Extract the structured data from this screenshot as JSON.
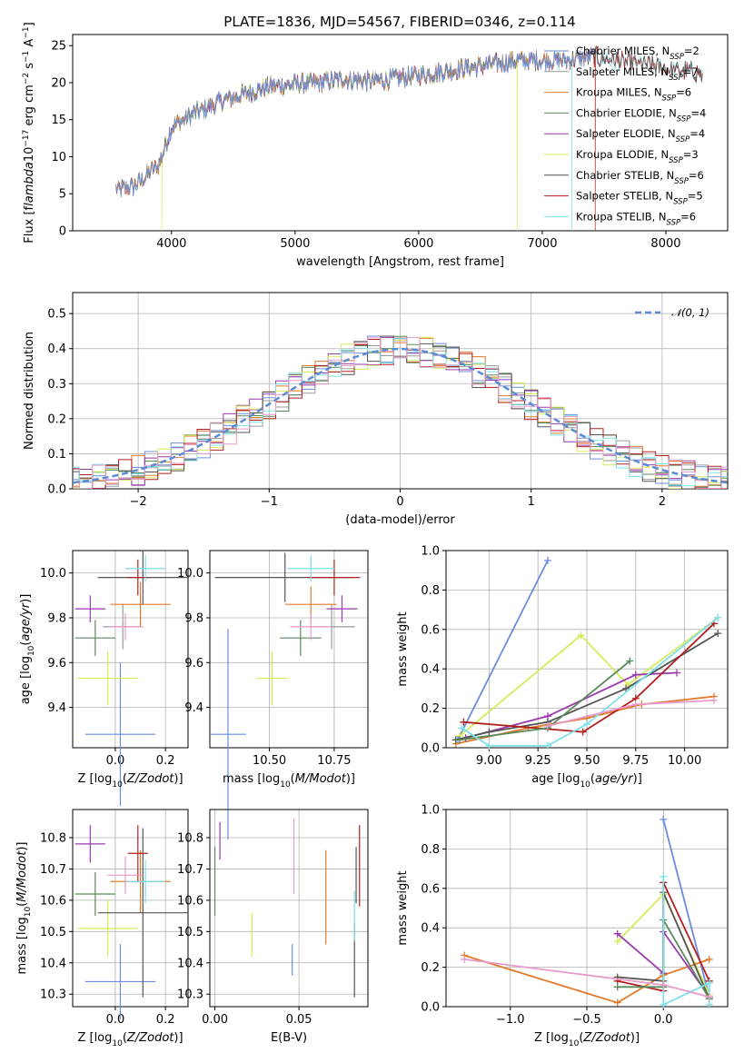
{
  "page": {
    "title": "PLATE=1836, MJD=54567, FIBERID=0346, z=0.114"
  },
  "colors": {
    "Chabrier MILES": "#6b8cde",
    "Salpeter MILES": "#9a9a9a",
    "Kroupa MILES": "#e07b2a",
    "Chabrier ELODIE": "#5a8a5a",
    "Salpeter ELODIE": "#9b3aae",
    "Kroupa ELODIE": "#d6ec5a",
    "Chabrier STELIB": "#555555",
    "Salpeter STELIB": "#b22020",
    "Kroupa STELIB": "#7ee0e8",
    "pink": "#e89ac8"
  },
  "chart_data": [
    {
      "id": "spectrum",
      "type": "line",
      "title": "PLATE=1836, MJD=54567, FIBERID=0346, z=0.114",
      "xlabel": "wavelength [Angstrom, rest frame]",
      "ylabel": "Flux [f$_\\lambda$10$^{-17}$ erg cm$^{-2}$ s$^{-1}$ A$^{-1}$]",
      "xlim": [
        3200,
        8500
      ],
      "ylim": [
        0,
        26.5
      ],
      "xticks": [
        4000,
        5000,
        6000,
        7000,
        8000
      ],
      "yticks": [
        0,
        5,
        10,
        15,
        20,
        25
      ],
      "legend_position": "upper-right",
      "legend": [
        {
          "base": "Chabrier MILES, N",
          "sub": "SSP",
          "tail": "=2"
        },
        {
          "base": "Salpeter MILES, N",
          "sub": "SSP",
          "tail": "=7"
        },
        {
          "base": "Kroupa MILES, N",
          "sub": "SSP",
          "tail": "=6"
        },
        {
          "base": "Chabrier ELODIE, N",
          "sub": "SSP",
          "tail": "=4"
        },
        {
          "base": "Salpeter ELODIE, N",
          "sub": "SSP",
          "tail": "=4"
        },
        {
          "base": "Kroupa ELODIE, N",
          "sub": "SSP",
          "tail": "=3"
        },
        {
          "base": "Chabrier STELIB, N",
          "sub": "SSP",
          "tail": "=6"
        },
        {
          "base": "Salpeter STELIB, N",
          "sub": "SSP",
          "tail": "=5"
        },
        {
          "base": "Kroupa STELIB, N",
          "sub": "SSP",
          "tail": "=6"
        }
      ],
      "continuum": {
        "x": [
          3550,
          3700,
          3800,
          3900,
          4000,
          4200,
          4400,
          4600,
          4800,
          5000,
          5200,
          5400,
          5600,
          5800,
          6000,
          6200,
          6400,
          6600,
          6800,
          7000,
          7200,
          7400,
          7600,
          7800,
          8000,
          8200,
          8300
        ],
        "y": [
          5.5,
          6.0,
          7.5,
          9.0,
          14.0,
          16.0,
          17.5,
          18.5,
          19.5,
          19.8,
          20.0,
          20.5,
          20.2,
          20.5,
          21.0,
          21.5,
          22.0,
          22.5,
          23.0,
          23.0,
          23.0,
          23.5,
          23.0,
          22.5,
          22.0,
          21.5,
          21.0
        ]
      }
    },
    {
      "id": "residuals",
      "type": "histogram",
      "xlabel": "(data-model)/error",
      "ylabel": "Normed distribution",
      "xlim": [
        -2.5,
        2.5
      ],
      "ylim": [
        0,
        0.56
      ],
      "xticks": [
        -2,
        -1,
        0,
        1,
        2
      ],
      "yticks": [
        0.0,
        0.1,
        0.2,
        0.3,
        0.4,
        0.5
      ],
      "legend": [
        "$\\mathcal{N}(0,1)$"
      ],
      "legend_label": "𝒩(0, 1)",
      "legend_position": "upper-right",
      "grid": true
    },
    {
      "id": "age_vs_Z",
      "type": "scatter",
      "xlabel": "Z [log$_{10}$($Z/Z_\\odot$)]",
      "ylabel": "age  [log$_{10}$($age/yr$)]",
      "xlim": [
        -0.17,
        0.29
      ],
      "ylim": [
        9.22,
        10.1
      ],
      "xticks": [
        0.0,
        0.2
      ],
      "yticks": [
        9.4,
        9.6,
        9.8,
        10.0
      ],
      "points": [
        {
          "model": "Chabrier MILES",
          "x": 0.02,
          "xerr": 0.14,
          "y": 9.28,
          "yerr": 0.32
        },
        {
          "model": "Salpeter MILES",
          "x": 0.03,
          "xerr": 0.08,
          "y": 9.76,
          "yerr": 0.1
        },
        {
          "model": "Kroupa MILES",
          "x": 0.1,
          "xerr": 0.12,
          "y": 9.86,
          "yerr": 0.1
        },
        {
          "model": "Chabrier ELODIE",
          "x": -0.08,
          "xerr": 0.08,
          "y": 9.71,
          "yerr": 0.08
        },
        {
          "model": "Salpeter ELODIE",
          "x": -0.1,
          "xerr": 0.06,
          "y": 9.84,
          "yerr": 0.06
        },
        {
          "model": "Kroupa ELODIE",
          "x": -0.03,
          "xerr": 0.12,
          "y": 9.53,
          "yerr": 0.12
        },
        {
          "model": "Chabrier STELIB",
          "x": 0.11,
          "xerr": 0.18,
          "y": 9.98,
          "yerr": 0.12
        },
        {
          "model": "Salpeter STELIB",
          "x": 0.09,
          "xerr": 0.04,
          "y": 9.98,
          "yerr": 0.08
        },
        {
          "model": "Kroupa STELIB",
          "x": 0.12,
          "xerr": 0.08,
          "y": 10.02,
          "yerr": 0.06
        },
        {
          "model": "pink",
          "x": 0.04,
          "xerr": 0.07,
          "y": 9.76,
          "yerr": 0.06
        }
      ]
    },
    {
      "id": "age_vs_mass",
      "type": "scatter",
      "xlabel": "mass [log$_{10}$($M/M_\\odot$)]",
      "xlim": [
        10.27,
        10.88
      ],
      "ylim": [
        9.22,
        10.1
      ],
      "xticks": [
        10.5,
        10.75
      ],
      "yticks": [
        9.4,
        9.6,
        9.8,
        10.0
      ],
      "points": [
        {
          "model": "Chabrier MILES",
          "x": 10.34,
          "xerr": 0.07,
          "y": 9.28,
          "yerr": 0.47
        },
        {
          "model": "Salpeter MILES",
          "x": 10.74,
          "xerr": 0.09,
          "y": 9.76,
          "yerr": 0.1
        },
        {
          "model": "Kroupa MILES",
          "x": 10.66,
          "xerr": 0.1,
          "y": 9.86,
          "yerr": 0.08
        },
        {
          "model": "Chabrier ELODIE",
          "x": 10.62,
          "xerr": 0.08,
          "y": 9.71,
          "yerr": 0.08
        },
        {
          "model": "Salpeter ELODIE",
          "x": 10.78,
          "xerr": 0.06,
          "y": 9.84,
          "yerr": 0.06
        },
        {
          "model": "Kroupa ELODIE",
          "x": 10.51,
          "xerr": 0.06,
          "y": 9.53,
          "yerr": 0.12
        },
        {
          "model": "Chabrier STELIB",
          "x": 10.56,
          "xerr": 0.27,
          "y": 9.98,
          "yerr": 0.11
        },
        {
          "model": "Salpeter STELIB",
          "x": 10.75,
          "xerr": 0.1,
          "y": 9.98,
          "yerr": 0.08
        },
        {
          "model": "Kroupa STELIB",
          "x": 10.66,
          "xerr": 0.09,
          "y": 10.02,
          "yerr": 0.06
        },
        {
          "model": "pink",
          "x": 10.66,
          "xerr": 0.08,
          "y": 9.76,
          "yerr": 0.06
        }
      ]
    },
    {
      "id": "weight_vs_age",
      "type": "line",
      "xlabel": "age  [log$_{10}$($age/yr$)]",
      "ylabel": "mass weight",
      "xlim": [
        8.78,
        10.22
      ],
      "ylim": [
        0,
        1.0
      ],
      "xticks": [
        9.0,
        9.25,
        9.5,
        9.75,
        10.0
      ],
      "yticks": [
        0.0,
        0.2,
        0.4,
        0.6,
        0.8,
        1.0
      ],
      "grid": true,
      "series": [
        {
          "model": "Chabrier MILES",
          "x": [
            8.84,
            9.3
          ],
          "y": [
            0.04,
            0.95
          ]
        },
        {
          "model": "Kroupa ELODIE",
          "x": [
            8.85,
            9.47,
            9.71,
            10.17
          ],
          "y": [
            0.06,
            0.57,
            0.32,
            0.66
          ]
        },
        {
          "model": "Kroupa MILES",
          "x": [
            8.83,
            9.2,
            9.5,
            9.78,
            10.15
          ],
          "y": [
            0.02,
            0.1,
            0.15,
            0.22,
            0.26
          ]
        },
        {
          "model": "Salpeter ELODIE",
          "x": [
            8.88,
            9.3,
            9.75,
            9.96
          ],
          "y": [
            0.05,
            0.16,
            0.37,
            0.38
          ]
        },
        {
          "model": "Chabrier STELIB",
          "x": [
            8.83,
            9.0,
            9.3,
            9.7,
            10.17
          ],
          "y": [
            0.04,
            0.08,
            0.13,
            0.3,
            0.58
          ]
        },
        {
          "model": "Salpeter STELIB",
          "x": [
            8.87,
            9.48,
            9.75,
            10.15
          ],
          "y": [
            0.13,
            0.08,
            0.25,
            0.63
          ]
        },
        {
          "model": "Chabrier ELODIE",
          "x": [
            8.85,
            9.3,
            9.72
          ],
          "y": [
            0.04,
            0.1,
            0.44
          ]
        },
        {
          "model": "Kroupa STELIB",
          "x": [
            8.86,
            9.0,
            9.3,
            9.5,
            10.17
          ],
          "y": [
            0.1,
            0.01,
            0.01,
            0.12,
            0.66
          ]
        },
        {
          "model": "pink",
          "x": [
            9.3,
            9.75,
            10.15
          ],
          "y": [
            0.11,
            0.22,
            0.24
          ]
        }
      ]
    },
    {
      "id": "mass_vs_Z",
      "type": "scatter",
      "xlabel": "Z [log$_{10}$($Z/Z_\\odot$)]",
      "ylabel": "mass [log$_{10}$($M/M_\\odot$)]",
      "xlim": [
        -0.17,
        0.29
      ],
      "ylim": [
        10.26,
        10.89
      ],
      "xticks": [
        0.0,
        0.2
      ],
      "yticks": [
        10.3,
        10.4,
        10.5,
        10.6,
        10.7,
        10.8
      ],
      "points": [
        {
          "model": "Chabrier MILES",
          "x": 0.02,
          "xerr": 0.14,
          "y": 10.34,
          "yerr": 0.12
        },
        {
          "model": "Kroupa MILES",
          "x": 0.1,
          "xerr": 0.12,
          "y": 10.66,
          "yerr": 0.1
        },
        {
          "model": "Chabrier ELODIE",
          "x": -0.08,
          "xerr": 0.08,
          "y": 10.62,
          "yerr": 0.07
        },
        {
          "model": "Salpeter ELODIE",
          "x": -0.1,
          "xerr": 0.06,
          "y": 10.78,
          "yerr": 0.06
        },
        {
          "model": "Kroupa ELODIE",
          "x": -0.03,
          "xerr": 0.12,
          "y": 10.51,
          "yerr": 0.09
        },
        {
          "model": "Chabrier STELIB",
          "x": 0.11,
          "xerr": 0.18,
          "y": 10.56,
          "yerr": 0.27
        },
        {
          "model": "Salpeter STELIB",
          "x": 0.09,
          "xerr": 0.04,
          "y": 10.75,
          "yerr": 0.09
        },
        {
          "model": "Kroupa STELIB",
          "x": 0.12,
          "xerr": 0.08,
          "y": 10.66,
          "yerr": 0.07
        },
        {
          "model": "pink",
          "x": 0.04,
          "xerr": 0.07,
          "y": 10.68,
          "yerr": 0.06
        }
      ]
    },
    {
      "id": "mass_vs_EBV",
      "type": "scatter",
      "xlabel": "E(B-V)",
      "xlim": [
        -0.003,
        0.091
      ],
      "ylim": [
        10.26,
        10.89
      ],
      "xticks": [
        0.0,
        0.05
      ],
      "yticks": [
        10.3,
        10.4,
        10.5,
        10.6,
        10.7,
        10.8
      ],
      "points": [
        {
          "model": "Chabrier MILES",
          "x": 0.046,
          "xerr": 0,
          "y": 10.41,
          "yerr": 0.05
        },
        {
          "model": "Kroupa MILES",
          "x": 0.066,
          "xerr": 0,
          "y": 10.61,
          "yerr": 0.15
        },
        {
          "model": "Chabrier ELODIE",
          "x": 0.0,
          "xerr": 0,
          "y": 10.66,
          "yerr": 0.11
        },
        {
          "model": "Salpeter ELODIE",
          "x": 0.003,
          "xerr": 0,
          "y": 10.79,
          "yerr": 0.06
        },
        {
          "model": "Kroupa ELODIE",
          "x": 0.022,
          "xerr": 0,
          "y": 10.49,
          "yerr": 0.07
        },
        {
          "model": "Chabrier STELIB",
          "x": 0.083,
          "xerr": 0,
          "y": 10.41,
          "yerr": 0.12
        },
        {
          "model": "Chabrier STELIB",
          "x": 0.084,
          "xerr": 0,
          "y": 10.68,
          "yerr": 0.09
        },
        {
          "model": "Salpeter STELIB",
          "x": 0.086,
          "xerr": 0,
          "y": 10.71,
          "yerr": 0.13
        },
        {
          "model": "Kroupa STELIB",
          "x": 0.083,
          "xerr": 0,
          "y": 10.55,
          "yerr": 0.08
        },
        {
          "model": "pink",
          "x": 0.047,
          "xerr": 0,
          "y": 10.74,
          "yerr": 0.12
        }
      ]
    },
    {
      "id": "weight_vs_Z",
      "type": "line",
      "xlabel": "Z [log$_{10}$($Z/Z_\\odot$)]",
      "ylabel": "mass weight",
      "xlim": [
        -1.42,
        0.42
      ],
      "ylim": [
        0,
        1.0
      ],
      "xticks": [
        -1.0,
        -0.5,
        0.0
      ],
      "yticks": [
        0.0,
        0.2,
        0.4,
        0.6,
        0.8,
        1.0
      ],
      "grid": true,
      "series": [
        {
          "model": "Chabrier MILES",
          "x": [
            0.0,
            0.3
          ],
          "y": [
            0.95,
            0.05
          ]
        },
        {
          "model": "Kroupa ELODIE",
          "x": [
            -0.3,
            0.0,
            0.3
          ],
          "y": [
            0.33,
            0.57,
            0.06
          ]
        },
        {
          "model": "Kroupa MILES",
          "x": [
            -1.3,
            -0.3,
            0.0,
            0.3
          ],
          "y": [
            0.26,
            0.02,
            0.16,
            0.24
          ]
        },
        {
          "model": "Salpeter ELODIE",
          "x": [
            -0.3,
            0.0,
            0.0,
            0.3
          ],
          "y": [
            0.37,
            0.17,
            0.38,
            0.05
          ]
        },
        {
          "model": "Chabrier STELIB",
          "x": [
            -0.3,
            0.0,
            0.0,
            0.3
          ],
          "y": [
            0.15,
            0.13,
            0.58,
            0.04
          ]
        },
        {
          "model": "Salpeter STELIB",
          "x": [
            -0.3,
            0.0,
            0.0,
            0.3
          ],
          "y": [
            0.13,
            0.08,
            0.63,
            0.13
          ]
        },
        {
          "model": "Chabrier ELODIE",
          "x": [
            -0.3,
            0.0,
            0.0,
            0.3
          ],
          "y": [
            0.1,
            0.1,
            0.44,
            0.04
          ]
        },
        {
          "model": "Kroupa STELIB",
          "x": [
            0.0,
            0.0,
            0.3,
            0.3
          ],
          "y": [
            0.66,
            0.01,
            0.12,
            0.01
          ]
        },
        {
          "model": "pink",
          "x": [
            -1.3,
            0.0,
            0.3
          ],
          "y": [
            0.24,
            0.11,
            0.05
          ]
        }
      ]
    }
  ]
}
